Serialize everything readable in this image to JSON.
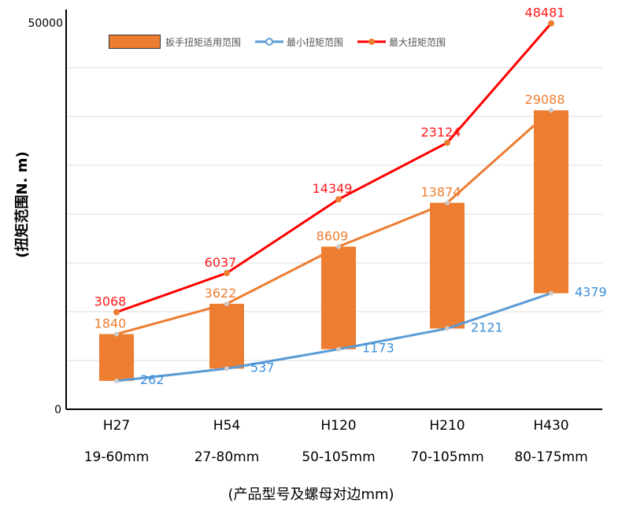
{
  "chart_data": {
    "type": "bar+line",
    "title": "",
    "ylabel": "(扭矩范围N. m)",
    "xlabel": "(产品型号及螺母对边mm)",
    "ylim": [
      0,
      50000
    ],
    "yticks": [
      "0",
      "50000"
    ],
    "categories": [
      "H27",
      "H54",
      "H120",
      "H210",
      "H430"
    ],
    "subcategories": [
      "19-60mm",
      "27-80mm",
      "50-105mm",
      "70-105mm",
      "80-175mm"
    ],
    "legend": [
      "扳手扭矩适用范围",
      "最小扭矩范围",
      "最大扭矩范围"
    ],
    "legend_position": "top",
    "grid": true,
    "series": [
      {
        "name": "最小扭矩范围",
        "type": "line",
        "color": "#5B9BD5",
        "values": [
          262,
          537,
          1173,
          2121,
          4379
        ]
      },
      {
        "name": "扳手扭矩适用范围",
        "type": "floating-bar",
        "color": "#ED7D31",
        "values": [
          1840,
          3622,
          8609,
          13874,
          29088
        ]
      },
      {
        "name": "最大扭矩范围",
        "type": "line",
        "color": "#FF0000",
        "values": [
          3068,
          6037,
          14349,
          23124,
          48481
        ]
      }
    ]
  }
}
